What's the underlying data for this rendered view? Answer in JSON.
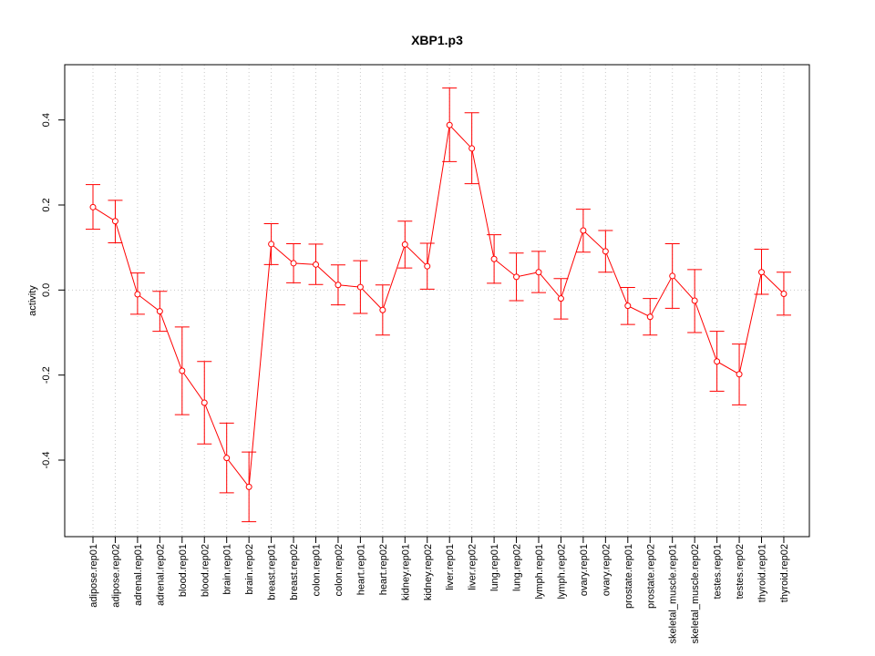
{
  "chart_data": {
    "type": "line",
    "title": "XBP1.p3",
    "ylabel": "activity",
    "xlabel": "",
    "ylim": [
      -0.58,
      0.53
    ],
    "yticks": [
      -0.4,
      -0.2,
      0.0,
      0.2,
      0.4
    ],
    "grid": true,
    "line_color": "#ff0000",
    "grid_color": "#c8c8c8",
    "categories": [
      "adipose.rep01",
      "adipose.rep02",
      "adrenal.rep01",
      "adrenal.rep02",
      "blood.rep01",
      "blood.rep02",
      "brain.rep01",
      "brain.rep02",
      "breast.rep01",
      "breast.rep02",
      "colon.rep01",
      "colon.rep02",
      "heart.rep01",
      "heart.rep02",
      "kidney.rep01",
      "kidney.rep02",
      "liver.rep01",
      "liver.rep02",
      "lung.rep01",
      "lung.rep02",
      "lymph.rep01",
      "lymph.rep02",
      "ovary.rep01",
      "ovary.rep02",
      "prostate.rep01",
      "prostate.rep02",
      "skeletal_muscle.rep01",
      "skeletal_muscle.rep02",
      "testes.rep01",
      "testes.rep02",
      "thyroid.rep01",
      "thyroid.rep02"
    ],
    "series": [
      {
        "values": [
          0.195,
          0.162,
          -0.01,
          -0.05,
          -0.19,
          -0.265,
          -0.395,
          -0.463,
          0.108,
          0.063,
          0.06,
          0.012,
          0.007,
          -0.047,
          0.107,
          0.056,
          0.388,
          0.333,
          0.073,
          0.031,
          0.042,
          -0.02,
          0.14,
          0.091,
          -0.037,
          -0.063,
          0.033,
          -0.025,
          -0.168,
          -0.198,
          0.042,
          -0.009
        ],
        "upper": [
          0.248,
          0.211,
          0.04,
          -0.003,
          -0.087,
          -0.168,
          -0.313,
          -0.381,
          0.156,
          0.109,
          0.108,
          0.059,
          0.069,
          0.012,
          0.162,
          0.11,
          0.475,
          0.417,
          0.13,
          0.087,
          0.091,
          0.027,
          0.19,
          0.14,
          0.006,
          -0.02,
          0.109,
          0.048,
          -0.097,
          -0.127,
          0.096,
          0.042
        ],
        "lower": [
          0.143,
          0.111,
          -0.057,
          -0.097,
          -0.293,
          -0.362,
          -0.477,
          -0.545,
          0.06,
          0.017,
          0.013,
          -0.035,
          -0.055,
          -0.106,
          0.052,
          0.002,
          0.302,
          0.25,
          0.016,
          -0.025,
          -0.006,
          -0.068,
          0.089,
          0.042,
          -0.081,
          -0.106,
          -0.043,
          -0.1,
          -0.238,
          -0.27,
          -0.01,
          -0.059
        ]
      }
    ]
  }
}
